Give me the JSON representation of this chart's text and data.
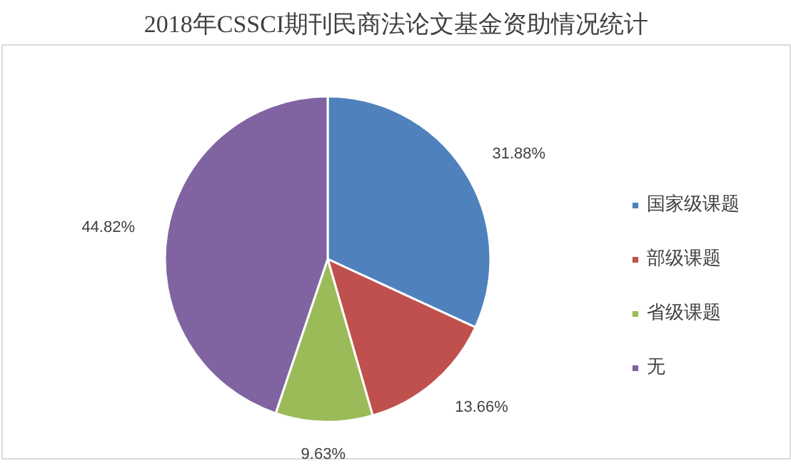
{
  "chart_data": {
    "type": "pie",
    "title": "2018年CSSCI期刊民商法论文基金资助情况统计",
    "categories": [
      "国家级课题",
      "部级课题",
      "省级课题",
      "无"
    ],
    "values": [
      31.88,
      13.66,
      9.63,
      44.82
    ],
    "colors": [
      "#4f81bd",
      "#c0504d",
      "#9bbb59",
      "#8064a2"
    ],
    "value_labels": [
      "31.88%",
      "13.66%",
      "9.63%",
      "44.82%"
    ],
    "legend": "right"
  }
}
